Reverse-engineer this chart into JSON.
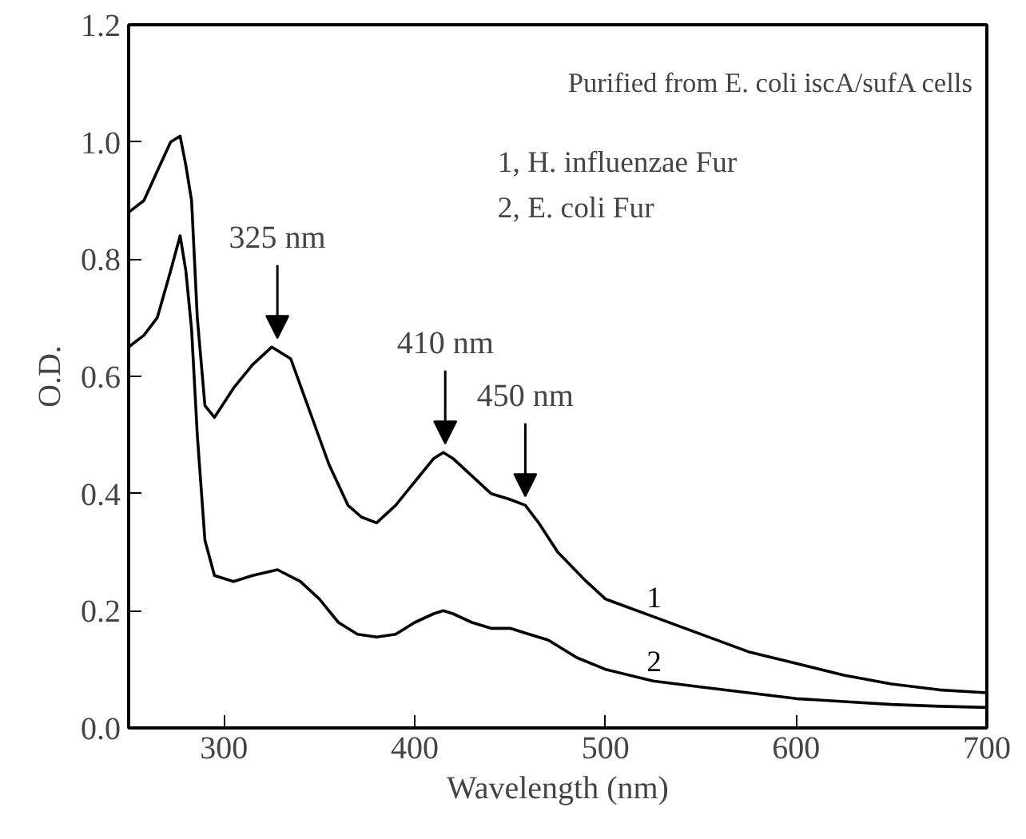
{
  "chart_data": {
    "type": "line",
    "xlabel": "Wavelength (nm)",
    "ylabel": "O.D.",
    "xlim": [
      250,
      700
    ],
    "xticks": [
      300,
      400,
      500,
      600,
      700
    ],
    "ylim": [
      0,
      1.2
    ],
    "yticks": [
      {
        "value": 0,
        "label": "0.0"
      },
      0.2,
      0.4,
      0.6,
      0.8,
      {
        "value": 1.0,
        "label": "1.0"
      },
      1.2
    ],
    "grid": false,
    "marker": "none",
    "line_style": "solid",
    "series": [
      {
        "name": "1",
        "color": "#000000",
        "x": [
          250,
          258,
          265,
          272,
          277,
          280,
          283,
          286,
          290,
          295,
          305,
          315,
          325,
          335,
          345,
          355,
          365,
          372,
          380,
          390,
          400,
          410,
          415,
          420,
          430,
          440,
          450,
          458,
          465,
          475,
          490,
          500,
          525,
          550,
          575,
          600,
          625,
          650,
          675,
          700
        ],
        "values": [
          0.88,
          0.9,
          0.95,
          1.0,
          1.01,
          0.96,
          0.9,
          0.7,
          0.55,
          0.53,
          0.58,
          0.62,
          0.65,
          0.63,
          0.54,
          0.45,
          0.38,
          0.36,
          0.35,
          0.38,
          0.42,
          0.46,
          0.47,
          0.46,
          0.43,
          0.4,
          0.39,
          0.38,
          0.35,
          0.3,
          0.25,
          0.22,
          0.19,
          0.16,
          0.13,
          0.11,
          0.09,
          0.075,
          0.065,
          0.06
        ]
      },
      {
        "name": "2",
        "color": "#000000",
        "x": [
          250,
          258,
          265,
          272,
          277,
          280,
          283,
          286,
          290,
          295,
          305,
          315,
          328,
          340,
          350,
          360,
          370,
          380,
          390,
          400,
          410,
          415,
          420,
          430,
          440,
          450,
          460,
          470,
          485,
          500,
          525,
          550,
          575,
          600,
          625,
          650,
          675,
          700
        ],
        "values": [
          0.65,
          0.67,
          0.7,
          0.78,
          0.84,
          0.78,
          0.68,
          0.5,
          0.32,
          0.26,
          0.25,
          0.26,
          0.27,
          0.25,
          0.22,
          0.18,
          0.16,
          0.155,
          0.16,
          0.18,
          0.195,
          0.2,
          0.195,
          0.18,
          0.17,
          0.17,
          0.16,
          0.15,
          0.12,
          0.1,
          0.08,
          0.07,
          0.06,
          0.05,
          0.045,
          0.04,
          0.037,
          0.035
        ]
      }
    ],
    "annotations": [
      "Purified from E. coli iscA/sufA cells",
      "1, H. influenzae Fur",
      "2, E. coli Fur",
      {
        "text": "325 nm",
        "x": 328,
        "y": 0.66
      },
      {
        "text": "410 nm",
        "x": 416,
        "y": 0.48
      },
      {
        "text": "450 nm",
        "x": 458,
        "y": 0.39
      }
    ]
  }
}
